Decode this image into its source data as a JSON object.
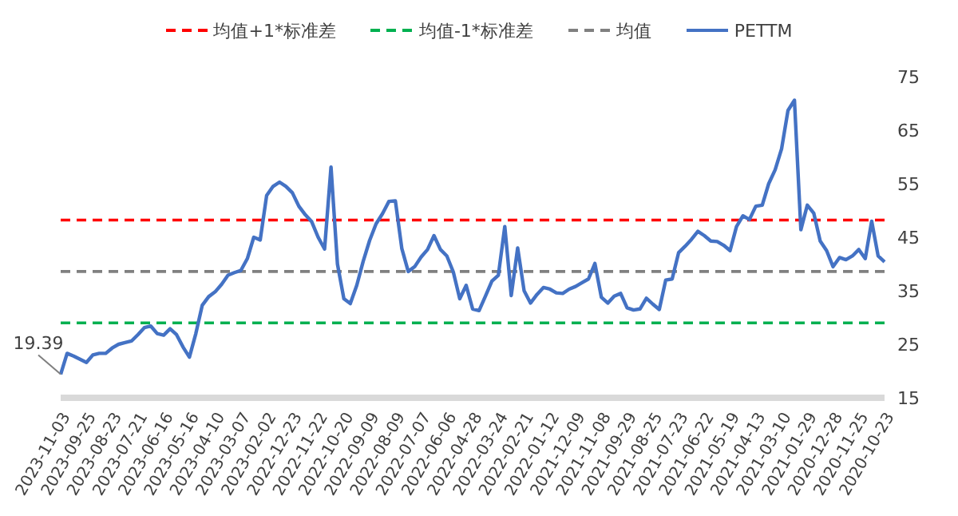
{
  "chart_data": {
    "type": "line",
    "categories": [
      "2023-11-03",
      null,
      null,
      null,
      "2023-09-25",
      null,
      null,
      null,
      "2023-08-23",
      null,
      null,
      null,
      "2023-07-21",
      null,
      null,
      null,
      "2023-06-16",
      null,
      null,
      null,
      "2023-05-16",
      null,
      null,
      null,
      "2023-04-10",
      null,
      null,
      null,
      "2023-03-07",
      null,
      null,
      null,
      "2023-02-02",
      null,
      null,
      null,
      "2022-12-23",
      null,
      null,
      null,
      "2022-11-22",
      null,
      null,
      null,
      "2022-10-20",
      null,
      null,
      null,
      "2022-09-09",
      null,
      null,
      null,
      "2022-08-09",
      null,
      null,
      null,
      "2022-07-07",
      null,
      null,
      null,
      "2022-06-06",
      null,
      null,
      null,
      "2022-04-28",
      null,
      null,
      null,
      "2022-03-24",
      null,
      null,
      null,
      "2022-02-21",
      null,
      null,
      null,
      "2022-01-12",
      null,
      null,
      null,
      "2021-12-09",
      null,
      null,
      null,
      "2021-11-08",
      null,
      null,
      null,
      "2021-09-29",
      null,
      null,
      null,
      "2021-08-25",
      null,
      null,
      null,
      "2021-07-23",
      null,
      null,
      null,
      "2021-06-22",
      null,
      null,
      null,
      "2021-05-19",
      null,
      null,
      null,
      "2021-04-13",
      null,
      null,
      null,
      "2021-03-10",
      null,
      null,
      null,
      "2021-01-29",
      null,
      null,
      null,
      "2020-12-28",
      null,
      null,
      null,
      "2020-11-25",
      null,
      null,
      null,
      "2020-10-23"
    ],
    "series": [
      {
        "name": "PETTM",
        "color": "#4472c4",
        "values": [
          19.39,
          23.3,
          22.8,
          22.2,
          21.6,
          23,
          23.3,
          23.3,
          24.3,
          25,
          25.3,
          25.6,
          26.8,
          28.1,
          28.4,
          27,
          26.7,
          27.9,
          26.8,
          24.5,
          22.6,
          27,
          32.3,
          33.9,
          34.8,
          36.2,
          37.9,
          38.4,
          38.8,
          41,
          45,
          44.5,
          52.8,
          54.5,
          55.3,
          54.5,
          53.3,
          50.8,
          49.2,
          47.9,
          45,
          42.8,
          58.1,
          40,
          33.5,
          32.6,
          36,
          40.5,
          44.4,
          47.5,
          49.4,
          51.7,
          51.8,
          42.9,
          38.6,
          39.5,
          41.3,
          42.7,
          45.3,
          42.7,
          41.5,
          38.5,
          33.5,
          36,
          31.6,
          31.3,
          34,
          36.8,
          37.9,
          47,
          34.1,
          43,
          35,
          32.7,
          34.3,
          35.6,
          35.3,
          34.6,
          34.5,
          35.3,
          35.8,
          36.5,
          37.2,
          40.1,
          33.8,
          32.7,
          34,
          34.5,
          31.8,
          31.4,
          31.6,
          33.6,
          32.5,
          31.5,
          37,
          37.2,
          42.1,
          43.3,
          44.6,
          46.1,
          45.3,
          44.3,
          44.2,
          43.5,
          42.5,
          47,
          49,
          48.3,
          50.8,
          51,
          55,
          57.6,
          61.5,
          68.7,
          70.6,
          46.4,
          51,
          49.5,
          44.3,
          42.5,
          39.5,
          41.2,
          40.8,
          41.5,
          42.7,
          41,
          48,
          41.5,
          40.4
        ]
      }
    ],
    "ref_lines": [
      {
        "axis": "y",
        "value": 48.2,
        "label": "均值+1*标准差",
        "color": "#ff0000",
        "line_style": "dashed"
      },
      {
        "axis": "y",
        "value": 29,
        "label": "均值-1*标准差",
        "color": "#00b050",
        "line_style": "dashed"
      },
      {
        "axis": "y",
        "value": 38.6,
        "label": "均值",
        "color": "#808080",
        "line_style": "dashed"
      }
    ],
    "annotations": [
      {
        "text": "19.39",
        "x": "2023-11-03",
        "y": 19.39
      }
    ],
    "ylim": [
      15,
      75
    ],
    "yticks": [
      15,
      25,
      35,
      45,
      55,
      65,
      75
    ],
    "grid": false,
    "legend": "top",
    "marker": "none",
    "line_style": "solid"
  }
}
